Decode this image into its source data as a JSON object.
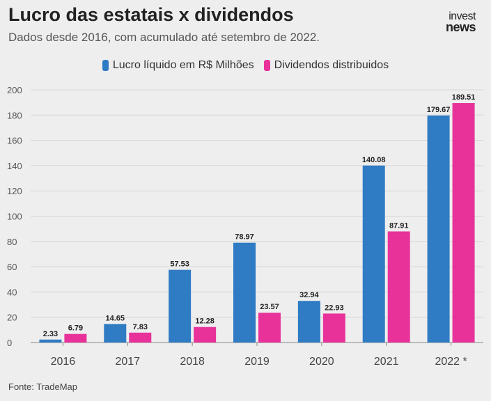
{
  "header": {
    "title": "Lucro das estatais x dividendos",
    "subtitle": "Dados desde 2016, com acumulado até setembro de 2022.",
    "logo_line1": "invest",
    "logo_line2": "news"
  },
  "footer": {
    "source": "Fonte: TradeMap"
  },
  "colors": {
    "lucro": "#2f7bc4",
    "dividendos": "#e8329a",
    "grid": "#d6d6d6",
    "axis": "#888888"
  },
  "chart_data": {
    "type": "bar",
    "title": "Lucro das estatais x dividendos",
    "subtitle": "Dados desde 2016, com acumulado até setembro de 2022.",
    "categories": [
      "2016",
      "2017",
      "2018",
      "2019",
      "2020",
      "2021",
      "2022 *"
    ],
    "series": [
      {
        "name": "Lucro líquido em R$ Milhões",
        "color": "#2f7bc4",
        "values": [
          2.33,
          14.65,
          57.53,
          78.97,
          32.94,
          140.08,
          179.67
        ]
      },
      {
        "name": "Dividendos distribuidos",
        "color": "#e8329a",
        "values": [
          6.79,
          7.83,
          12.28,
          23.57,
          22.93,
          87.91,
          189.51
        ]
      }
    ],
    "value_labels": [
      [
        "2.33",
        "14.65",
        "57.53",
        "78.97",
        "32.94",
        "140.08",
        "179.67"
      ],
      [
        "6.79",
        "7.83",
        "12.28",
        "23.57",
        "22.93",
        "87.91",
        "189.51"
      ]
    ],
    "ylim": [
      0,
      200
    ],
    "yticks": [
      "0",
      "20",
      "40",
      "60",
      "80",
      "100",
      "120",
      "140",
      "160",
      "180",
      "200"
    ],
    "grid": true,
    "legend_position": "top-center"
  }
}
